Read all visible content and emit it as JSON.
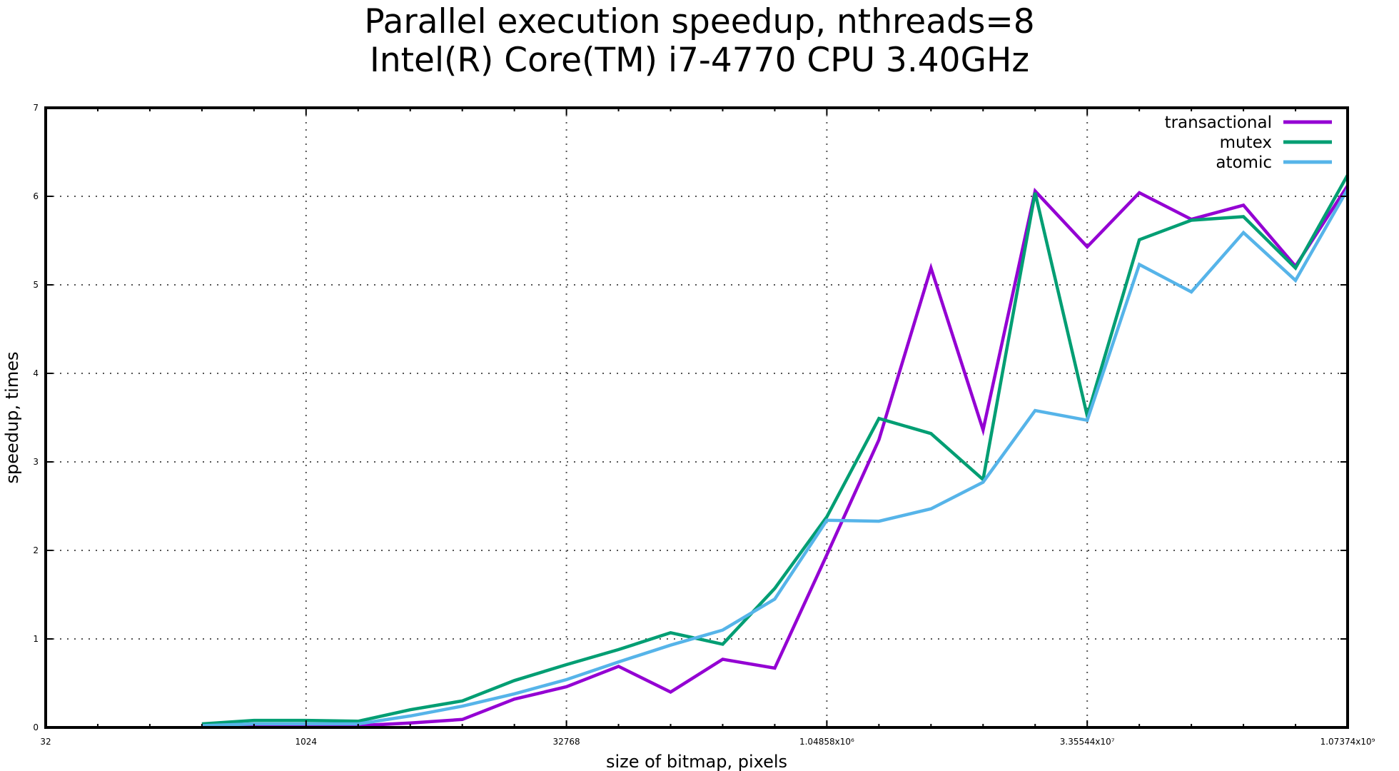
{
  "title_line1": "Parallel execution speedup, nthreads=8",
  "title_line2": "Intel(R) Core(TM) i7-4770 CPU 3.40GHz",
  "colors": {
    "transactional": "#9400d3",
    "mutex": "#009e73",
    "atomic": "#56b4e9",
    "frame": "#000000",
    "grid": "#555555"
  },
  "chart_data": {
    "type": "line",
    "title": "Parallel execution speedup, nthreads=8\nIntel(R) Core(TM) i7-4770 CPU 3.40GHz",
    "xlabel": "size of bitmap, pixels",
    "ylabel": "speedup, times",
    "xscale": "log2",
    "xlim": [
      32,
      1073741824
    ],
    "ylim": [
      0,
      7
    ],
    "grid": true,
    "legend_position": "top-right",
    "x_ticks": [
      32,
      1024,
      32768,
      1048576,
      33554432,
      1073741824
    ],
    "x_tick_labels": [
      "32",
      "1024",
      "32768",
      "1.04858x10⁶",
      "3.35544x10⁷",
      "1.07374x10⁹"
    ],
    "y_ticks": [
      0,
      1,
      2,
      3,
      4,
      5,
      6,
      7
    ],
    "y_tick_labels": [
      "0",
      "1",
      "2",
      "3",
      "4",
      "5",
      "6",
      "7"
    ],
    "x": [
      256,
      512,
      1024,
      2048,
      4096,
      8192,
      16384,
      32768,
      65536,
      131072,
      262144,
      524288,
      1048576,
      2097152,
      4194304,
      8388608,
      16777216,
      33554432,
      67108864,
      134217728,
      268435456,
      536870912,
      1073741824
    ],
    "series": [
      {
        "name": "transactional",
        "color_key": "transactional",
        "values": [
          0.02,
          0.02,
          0.02,
          0.02,
          0.05,
          0.09,
          0.32,
          0.46,
          0.69,
          0.4,
          0.77,
          0.67,
          1.95,
          3.25,
          5.19,
          3.36,
          6.06,
          5.43,
          6.04,
          5.74,
          5.9,
          5.21,
          6.12
        ]
      },
      {
        "name": "mutex",
        "color_key": "mutex",
        "values": [
          0.04,
          0.08,
          0.08,
          0.07,
          0.2,
          0.3,
          0.53,
          0.71,
          0.88,
          1.07,
          0.94,
          1.57,
          2.38,
          3.49,
          3.32,
          2.8,
          6.04,
          3.52,
          5.51,
          5.73,
          5.77,
          5.19,
          6.24
        ]
      },
      {
        "name": "atomic",
        "color_key": "atomic",
        "values": [
          0.02,
          0.04,
          0.04,
          0.04,
          0.13,
          0.24,
          0.38,
          0.54,
          0.74,
          0.93,
          1.1,
          1.45,
          2.34,
          2.33,
          2.47,
          2.77,
          3.58,
          3.47,
          5.23,
          4.92,
          5.59,
          5.05,
          6.08
        ]
      }
    ]
  }
}
